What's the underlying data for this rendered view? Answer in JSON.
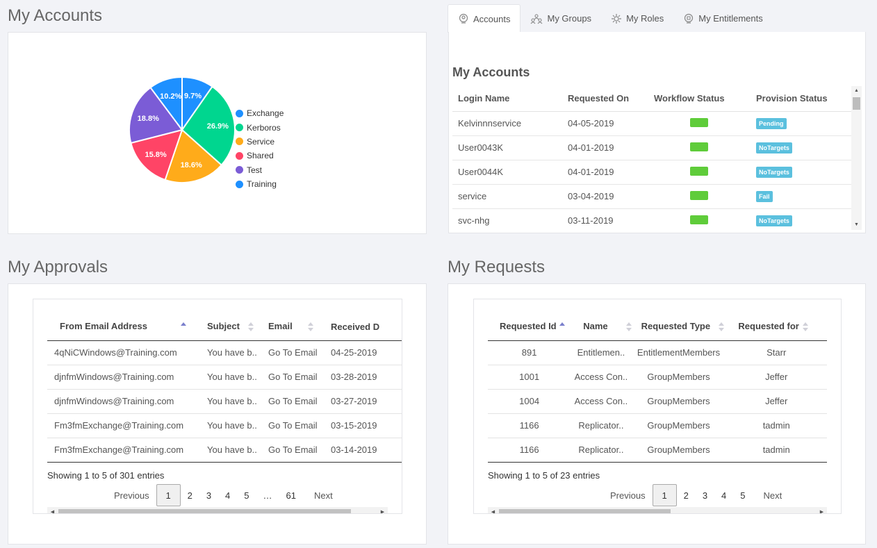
{
  "my_accounts_chart": {
    "section_title": "My Accounts",
    "chart_data": {
      "type": "pie",
      "slices": [
        {
          "name": "Exchange",
          "value": 9.7,
          "label": "9.7%",
          "color": "#1e90ff"
        },
        {
          "name": "Kerboros",
          "value": 26.9,
          "label": "26.9%",
          "color": "#00d68f"
        },
        {
          "name": "Service",
          "value": 18.6,
          "label": "18.6%",
          "color": "#ffab1a"
        },
        {
          "name": "Shared",
          "value": 15.8,
          "label": "15.8%",
          "color": "#ff4466"
        },
        {
          "name": "Test",
          "value": 18.8,
          "label": "18.8%",
          "color": "#7b5cd6"
        },
        {
          "name": "Training",
          "value": 10.2,
          "label": "10.2%",
          "color": "#1e90ff"
        }
      ],
      "legend_position": "right"
    }
  },
  "tabs": [
    {
      "label": "Accounts",
      "icon": "accounts-icon",
      "active": true
    },
    {
      "label": "My Groups",
      "icon": "groups-icon",
      "active": false
    },
    {
      "label": "My Roles",
      "icon": "roles-icon",
      "active": false
    },
    {
      "label": "My Entitlements",
      "icon": "entitlements-icon",
      "active": false
    }
  ],
  "accounts_table": {
    "title": "My Accounts",
    "headers": [
      "Login Name",
      "Requested On",
      "Workflow Status",
      "Provision Status"
    ],
    "rows": [
      {
        "login": "Kelvinnnservice",
        "requested_on": "04-05-2019",
        "provision": "Pending"
      },
      {
        "login": "User0043K",
        "requested_on": "04-01-2019",
        "provision": "NoTargets"
      },
      {
        "login": "User0044K",
        "requested_on": "04-01-2019",
        "provision": "NoTargets"
      },
      {
        "login": "service",
        "requested_on": "03-04-2019",
        "provision": "Fail"
      },
      {
        "login": "svc-nhg",
        "requested_on": "03-11-2019",
        "provision": "NoTargets"
      }
    ]
  },
  "approvals": {
    "section_title": "My Approvals",
    "headers": [
      "From Email Address",
      "Subject",
      "Email",
      "Received D"
    ],
    "rows": [
      [
        "4qNiCWindows@Training.com",
        "You have b..",
        "Go To Email",
        "04-25-2019"
      ],
      [
        "djnfmWindows@Training.com",
        "You have b..",
        "Go To Email",
        "03-28-2019"
      ],
      [
        "djnfmWindows@Training.com",
        "You have b..",
        "Go To Email",
        "03-27-2019"
      ],
      [
        "Fm3fmExchange@Training.com",
        "You have b..",
        "Go To Email",
        "03-15-2019"
      ],
      [
        "Fm3fmExchange@Training.com",
        "You have b..",
        "Go To Email",
        "03-14-2019"
      ]
    ],
    "info": "Showing 1 to 5 of 301 entries",
    "pager": {
      "previous": "Previous",
      "pages": [
        "1",
        "2",
        "3",
        "4",
        "5",
        "…",
        "61"
      ],
      "current": "1",
      "next": "Next"
    }
  },
  "requests": {
    "section_title": "My Requests",
    "headers": [
      "Requested Id",
      "Name",
      "Requested Type",
      "Requested for"
    ],
    "rows": [
      [
        "891",
        "Entitlemen..",
        "EntitlementMembers",
        "Starr"
      ],
      [
        "1001",
        "Access Con..",
        "GroupMembers",
        "Jeffer"
      ],
      [
        "1004",
        "Access Con..",
        "GroupMembers",
        "Jeffer"
      ],
      [
        "1166",
        "Replicator..",
        "GroupMembers",
        "tadmin"
      ],
      [
        "1166",
        "Replicator..",
        "GroupMembers",
        "tadmin"
      ]
    ],
    "info": "Showing 1 to 5 of 23 entries",
    "pager": {
      "previous": "Previous",
      "pages": [
        "1",
        "2",
        "3",
        "4",
        "5"
      ],
      "current": "1",
      "next": "Next"
    }
  }
}
